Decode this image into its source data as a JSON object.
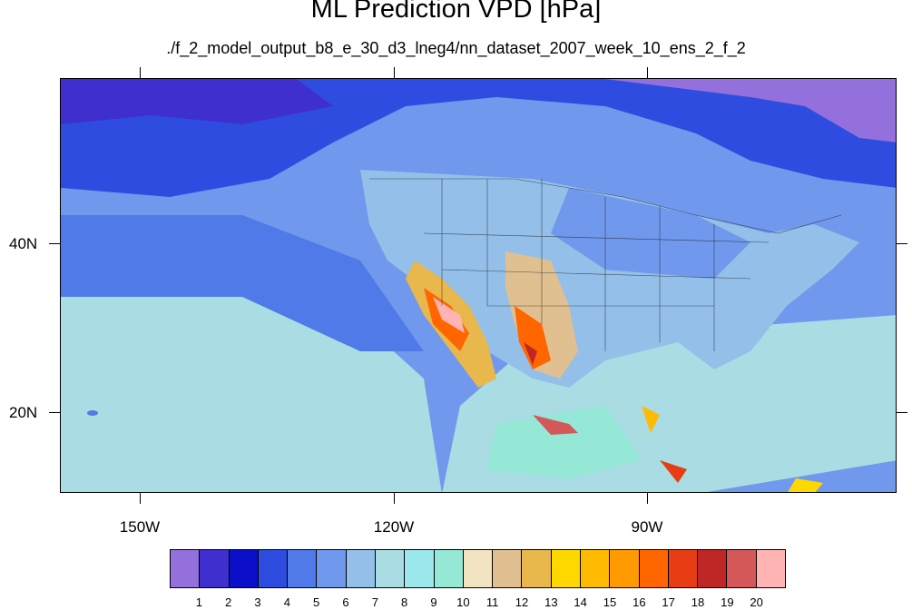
{
  "title": "ML Prediction VPD [hPa]",
  "subtitle": "./f_2_model_output_b8_e_30_d3_lneg4/nn_dataset_2007_week_10_ens_2_f_2",
  "lat_labels": [
    "40N",
    "20N"
  ],
  "lon_labels": [
    "150W",
    "120W",
    "90W"
  ],
  "legend": {
    "values": [
      "1",
      "2",
      "3",
      "4",
      "5",
      "6",
      "7",
      "8",
      "9",
      "10",
      "11",
      "12",
      "13",
      "14",
      "15",
      "16",
      "17",
      "18",
      "19",
      "20"
    ],
    "colors": [
      "#9370db",
      "#3f2fcf",
      "#0b10c8",
      "#2e4de0",
      "#4f7ae8",
      "#7098ec",
      "#93bfe8",
      "#a9dce3",
      "#9be8ec",
      "#95e8d6",
      "#f2e4c0",
      "#e0c090",
      "#e8b84c",
      "#ffd800",
      "#ffbb00",
      "#ff9a00",
      "#ff6600",
      "#e83c14",
      "#bf2626",
      "#d45858",
      "#ffb4b4"
    ]
  },
  "chart_data": {
    "type": "heatmap",
    "title": "ML Prediction VPD [hPa]",
    "subtitle": "./f_2_model_output_b8_e_30_d3_lneg4/nn_dataset_2007_week_10_ens_2_f_2",
    "projection": "cylindrical equidistant",
    "lon_range": [
      -160,
      -61
    ],
    "lat_range": [
      11,
      60
    ],
    "lon_ticks": [
      -150,
      -120,
      -90
    ],
    "lat_ticks": [
      40,
      20
    ],
    "colorbar_levels": [
      1,
      2,
      3,
      4,
      5,
      6,
      7,
      8,
      9,
      10,
      11,
      12,
      13,
      14,
      15,
      16,
      17,
      18,
      19,
      20
    ],
    "colorbar_placement": "bottom"
  }
}
